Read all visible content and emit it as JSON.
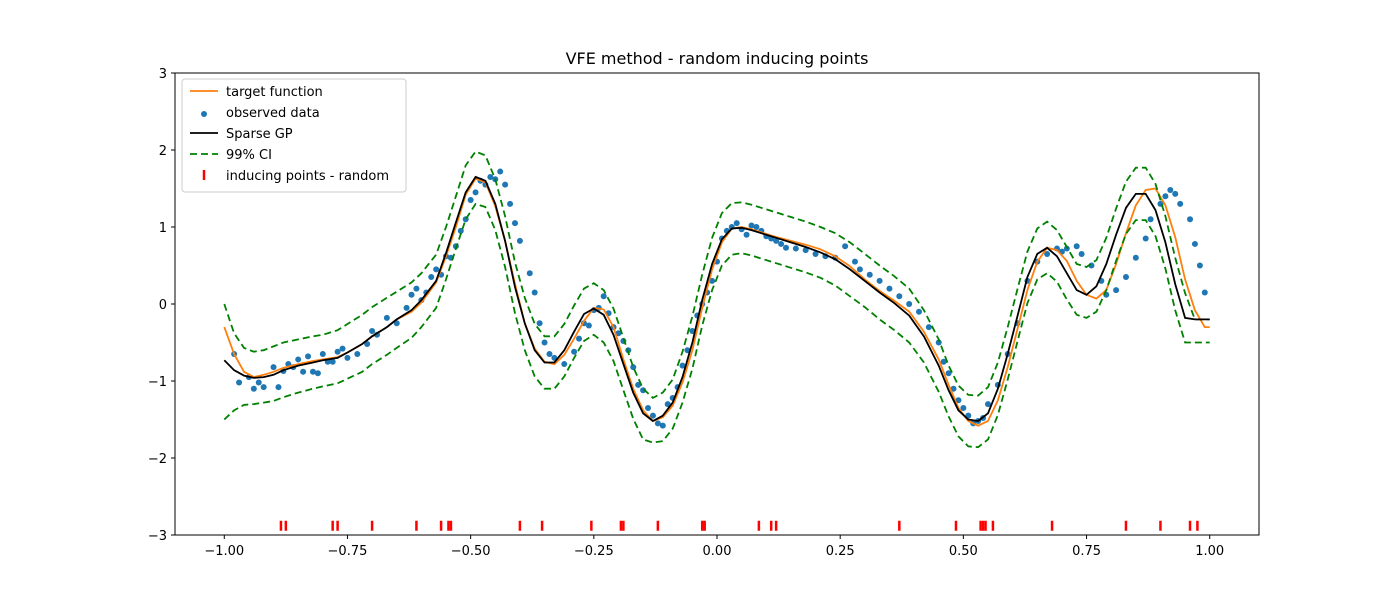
{
  "chart_data": {
    "type": "line",
    "title": "VFE method - random inducing points",
    "xlabel": "",
    "ylabel": "",
    "xlim": [
      -1.1,
      1.1
    ],
    "ylim": [
      -3,
      3
    ],
    "grid": false,
    "legend_placement": "top-left",
    "x_ticks": [
      "−1.00",
      "−0.75",
      "−0.50",
      "−0.25",
      "0.00",
      "0.25",
      "0.50",
      "0.75",
      "1.00"
    ],
    "x_tick_values": [
      -1.0,
      -0.75,
      -0.5,
      -0.25,
      0.0,
      0.25,
      0.5,
      0.75,
      1.0
    ],
    "y_ticks": [
      "−3",
      "−2",
      "−1",
      "0",
      "1",
      "2",
      "3"
    ],
    "y_tick_values": [
      -3,
      -2,
      -1,
      0,
      1,
      2,
      3
    ],
    "colors": {
      "target": "#ff7f0e",
      "observed": "#1f77b4",
      "sparse_gp": "#000000",
      "ci": "#008000",
      "inducing": "#ff0000"
    },
    "series": [
      {
        "name": "target function",
        "kind": "line",
        "x": [
          -1.0,
          -0.98,
          -0.96,
          -0.94,
          -0.92,
          -0.9,
          -0.88,
          -0.85,
          -0.82,
          -0.8,
          -0.77,
          -0.75,
          -0.72,
          -0.7,
          -0.67,
          -0.65,
          -0.62,
          -0.6,
          -0.57,
          -0.55,
          -0.53,
          -0.51,
          -0.49,
          -0.47,
          -0.45,
          -0.43,
          -0.41,
          -0.39,
          -0.37,
          -0.35,
          -0.33,
          -0.31,
          -0.29,
          -0.27,
          -0.25,
          -0.23,
          -0.21,
          -0.19,
          -0.17,
          -0.15,
          -0.13,
          -0.11,
          -0.09,
          -0.07,
          -0.05,
          -0.03,
          -0.01,
          0.01,
          0.03,
          0.05,
          0.07,
          0.09,
          0.12,
          0.15,
          0.18,
          0.21,
          0.24,
          0.27,
          0.3,
          0.33,
          0.36,
          0.39,
          0.42,
          0.45,
          0.47,
          0.49,
          0.51,
          0.53,
          0.55,
          0.57,
          0.59,
          0.61,
          0.63,
          0.65,
          0.67,
          0.69,
          0.71,
          0.73,
          0.75,
          0.77,
          0.79,
          0.81,
          0.83,
          0.85,
          0.87,
          0.89,
          0.91,
          0.93,
          0.95,
          0.97,
          0.99,
          1.0
        ],
        "y": [
          -0.3,
          -0.65,
          -0.88,
          -0.95,
          -0.92,
          -0.88,
          -0.83,
          -0.78,
          -0.74,
          -0.72,
          -0.69,
          -0.63,
          -0.52,
          -0.42,
          -0.3,
          -0.2,
          -0.1,
          0.02,
          0.28,
          0.62,
          1.0,
          1.42,
          1.63,
          1.58,
          1.27,
          0.82,
          0.26,
          -0.25,
          -0.58,
          -0.75,
          -0.78,
          -0.66,
          -0.45,
          -0.22,
          -0.05,
          -0.07,
          -0.3,
          -0.72,
          -1.1,
          -1.38,
          -1.52,
          -1.47,
          -1.32,
          -1.02,
          -0.6,
          -0.05,
          0.45,
          0.8,
          0.98,
          1.0,
          0.97,
          0.93,
          0.87,
          0.82,
          0.77,
          0.71,
          0.62,
          0.49,
          0.32,
          0.17,
          0.04,
          -0.1,
          -0.36,
          -0.72,
          -1.05,
          -1.35,
          -1.52,
          -1.58,
          -1.52,
          -1.25,
          -0.82,
          -0.32,
          0.18,
          0.55,
          0.73,
          0.7,
          0.56,
          0.3,
          0.12,
          0.07,
          0.18,
          0.52,
          0.92,
          1.28,
          1.48,
          1.5,
          1.28,
          0.87,
          0.32,
          -0.08,
          -0.3,
          -0.3
        ]
      },
      {
        "name": "Sparse GP",
        "kind": "line",
        "x": [
          -1.0,
          -0.98,
          -0.96,
          -0.94,
          -0.92,
          -0.9,
          -0.88,
          -0.85,
          -0.82,
          -0.8,
          -0.77,
          -0.75,
          -0.72,
          -0.7,
          -0.67,
          -0.65,
          -0.62,
          -0.6,
          -0.57,
          -0.55,
          -0.53,
          -0.51,
          -0.49,
          -0.47,
          -0.45,
          -0.43,
          -0.41,
          -0.39,
          -0.37,
          -0.35,
          -0.33,
          -0.31,
          -0.29,
          -0.27,
          -0.25,
          -0.23,
          -0.21,
          -0.19,
          -0.17,
          -0.15,
          -0.13,
          -0.11,
          -0.09,
          -0.07,
          -0.05,
          -0.03,
          -0.01,
          0.01,
          0.03,
          0.05,
          0.07,
          0.09,
          0.12,
          0.15,
          0.18,
          0.21,
          0.24,
          0.27,
          0.3,
          0.33,
          0.36,
          0.39,
          0.42,
          0.45,
          0.47,
          0.49,
          0.51,
          0.53,
          0.55,
          0.57,
          0.59,
          0.61,
          0.63,
          0.65,
          0.67,
          0.69,
          0.71,
          0.73,
          0.75,
          0.77,
          0.79,
          0.81,
          0.83,
          0.85,
          0.87,
          0.89,
          0.91,
          0.93,
          0.95,
          0.97,
          0.99,
          1.0
        ],
        "y": [
          -0.73,
          -0.86,
          -0.93,
          -0.96,
          -0.95,
          -0.92,
          -0.86,
          -0.8,
          -0.76,
          -0.73,
          -0.7,
          -0.63,
          -0.52,
          -0.42,
          -0.3,
          -0.2,
          -0.08,
          0.05,
          0.3,
          0.66,
          1.06,
          1.45,
          1.65,
          1.6,
          1.3,
          0.82,
          0.22,
          -0.25,
          -0.6,
          -0.76,
          -0.76,
          -0.6,
          -0.36,
          -0.13,
          -0.06,
          -0.14,
          -0.4,
          -0.78,
          -1.15,
          -1.42,
          -1.52,
          -1.45,
          -1.28,
          -0.95,
          -0.5,
          0.05,
          0.52,
          0.84,
          0.98,
          0.99,
          0.96,
          0.92,
          0.86,
          0.8,
          0.74,
          0.67,
          0.58,
          0.45,
          0.3,
          0.15,
          0.01,
          -0.15,
          -0.42,
          -0.8,
          -1.12,
          -1.38,
          -1.5,
          -1.52,
          -1.42,
          -1.1,
          -0.65,
          -0.15,
          0.35,
          0.65,
          0.73,
          0.62,
          0.4,
          0.18,
          0.12,
          0.23,
          0.52,
          0.9,
          1.25,
          1.43,
          1.43,
          1.22,
          0.8,
          0.26,
          -0.18,
          -0.2,
          -0.2,
          -0.2
        ]
      },
      {
        "name": "99% CI",
        "kind": "band",
        "x": [
          -1.0,
          -0.98,
          -0.96,
          -0.94,
          -0.92,
          -0.9,
          -0.88,
          -0.85,
          -0.82,
          -0.8,
          -0.77,
          -0.75,
          -0.72,
          -0.7,
          -0.67,
          -0.65,
          -0.62,
          -0.6,
          -0.57,
          -0.55,
          -0.53,
          -0.51,
          -0.49,
          -0.47,
          -0.45,
          -0.43,
          -0.41,
          -0.39,
          -0.37,
          -0.35,
          -0.33,
          -0.31,
          -0.29,
          -0.27,
          -0.25,
          -0.23,
          -0.21,
          -0.19,
          -0.17,
          -0.15,
          -0.13,
          -0.11,
          -0.09,
          -0.07,
          -0.05,
          -0.03,
          -0.01,
          0.01,
          0.03,
          0.05,
          0.07,
          0.09,
          0.12,
          0.15,
          0.18,
          0.21,
          0.24,
          0.27,
          0.3,
          0.33,
          0.36,
          0.39,
          0.42,
          0.45,
          0.47,
          0.49,
          0.51,
          0.53,
          0.55,
          0.57,
          0.59,
          0.61,
          0.63,
          0.65,
          0.67,
          0.69,
          0.71,
          0.73,
          0.75,
          0.77,
          0.79,
          0.81,
          0.83,
          0.85,
          0.87,
          0.89,
          0.91,
          0.93,
          0.95,
          0.97,
          0.99,
          1.0
        ],
        "upper": [
          0.0,
          -0.38,
          -0.57,
          -0.62,
          -0.6,
          -0.55,
          -0.5,
          -0.46,
          -0.42,
          -0.4,
          -0.34,
          -0.26,
          -0.14,
          -0.04,
          0.08,
          0.16,
          0.28,
          0.4,
          0.64,
          1.0,
          1.4,
          1.8,
          1.98,
          1.93,
          1.62,
          1.14,
          0.54,
          0.08,
          -0.26,
          -0.42,
          -0.42,
          -0.26,
          -0.02,
          0.2,
          0.27,
          0.18,
          -0.06,
          -0.44,
          -0.82,
          -1.1,
          -1.22,
          -1.15,
          -0.98,
          -0.62,
          -0.16,
          0.38,
          0.86,
          1.18,
          1.31,
          1.32,
          1.29,
          1.25,
          1.19,
          1.13,
          1.07,
          1.0,
          0.92,
          0.8,
          0.65,
          0.5,
          0.36,
          0.2,
          -0.08,
          -0.46,
          -0.8,
          -1.06,
          -1.18,
          -1.19,
          -1.08,
          -0.76,
          -0.3,
          0.2,
          0.68,
          0.98,
          1.07,
          0.96,
          0.74,
          0.52,
          0.48,
          0.57,
          0.86,
          1.24,
          1.59,
          1.77,
          1.77,
          1.56,
          1.14,
          0.6,
          0.14,
          -0.2,
          -0.2,
          -0.2
        ],
        "lower": [
          -1.5,
          -1.38,
          -1.31,
          -1.3,
          -1.28,
          -1.26,
          -1.21,
          -1.15,
          -1.1,
          -1.07,
          -1.03,
          -0.97,
          -0.88,
          -0.78,
          -0.66,
          -0.57,
          -0.44,
          -0.3,
          -0.05,
          0.32,
          0.72,
          1.1,
          1.3,
          1.26,
          0.96,
          0.48,
          -0.12,
          -0.6,
          -0.94,
          -1.1,
          -1.1,
          -0.94,
          -0.7,
          -0.48,
          -0.4,
          -0.5,
          -0.74,
          -1.12,
          -1.49,
          -1.76,
          -1.8,
          -1.78,
          -1.62,
          -1.28,
          -0.84,
          -0.28,
          0.18,
          0.5,
          0.64,
          0.66,
          0.63,
          0.59,
          0.53,
          0.47,
          0.41,
          0.34,
          0.24,
          0.1,
          -0.04,
          -0.2,
          -0.34,
          -0.5,
          -0.76,
          -1.14,
          -1.46,
          -1.72,
          -1.85,
          -1.86,
          -1.76,
          -1.44,
          -0.98,
          -0.48,
          0.01,
          0.32,
          0.4,
          0.29,
          0.06,
          -0.14,
          -0.18,
          -0.1,
          0.18,
          0.56,
          0.91,
          1.09,
          1.09,
          0.88,
          0.46,
          -0.08,
          -0.5,
          -0.5,
          -0.5,
          -0.5
        ]
      },
      {
        "name": "observed data",
        "kind": "scatter",
        "x": [
          -0.98,
          -0.97,
          -0.95,
          -0.94,
          -0.93,
          -0.92,
          -0.9,
          -0.89,
          -0.88,
          -0.87,
          -0.86,
          -0.85,
          -0.84,
          -0.83,
          -0.82,
          -0.81,
          -0.8,
          -0.79,
          -0.78,
          -0.77,
          -0.76,
          -0.75,
          -0.73,
          -0.71,
          -0.7,
          -0.69,
          -0.67,
          -0.65,
          -0.63,
          -0.62,
          -0.61,
          -0.6,
          -0.59,
          -0.58,
          -0.57,
          -0.56,
          -0.55,
          -0.54,
          -0.53,
          -0.52,
          -0.51,
          -0.5,
          -0.49,
          -0.48,
          -0.47,
          -0.46,
          -0.45,
          -0.44,
          -0.43,
          -0.42,
          -0.41,
          -0.4,
          -0.38,
          -0.37,
          -0.36,
          -0.35,
          -0.34,
          -0.33,
          -0.31,
          -0.29,
          -0.28,
          -0.27,
          -0.26,
          -0.25,
          -0.24,
          -0.23,
          -0.22,
          -0.21,
          -0.2,
          -0.19,
          -0.18,
          -0.17,
          -0.16,
          -0.15,
          -0.14,
          -0.13,
          -0.12,
          -0.11,
          -0.1,
          -0.09,
          -0.08,
          -0.07,
          -0.06,
          -0.05,
          -0.04,
          -0.03,
          -0.02,
          -0.01,
          0.0,
          0.01,
          0.02,
          0.03,
          0.04,
          0.05,
          0.06,
          0.07,
          0.08,
          0.09,
          0.1,
          0.11,
          0.12,
          0.13,
          0.14,
          0.16,
          0.18,
          0.2,
          0.22,
          0.24,
          0.26,
          0.28,
          0.29,
          0.31,
          0.33,
          0.35,
          0.37,
          0.39,
          0.41,
          0.43,
          0.45,
          0.46,
          0.47,
          0.48,
          0.49,
          0.5,
          0.51,
          0.52,
          0.53,
          0.54,
          0.55,
          0.57,
          0.59,
          0.61,
          0.63,
          0.65,
          0.67,
          0.69,
          0.7,
          0.71,
          0.73,
          0.74,
          0.76,
          0.78,
          0.79,
          0.81,
          0.83,
          0.85,
          0.87,
          0.88,
          0.9,
          0.91,
          0.92,
          0.93,
          0.94,
          0.96,
          0.97,
          0.98,
          0.99
        ],
        "y": [
          -0.65,
          -1.02,
          -0.95,
          -1.1,
          -1.02,
          -1.08,
          -0.82,
          -1.08,
          -0.87,
          -0.78,
          -0.82,
          -0.72,
          -0.88,
          -0.68,
          -0.88,
          -0.9,
          -0.65,
          -0.75,
          -0.75,
          -0.62,
          -0.58,
          -0.7,
          -0.65,
          -0.52,
          -0.35,
          -0.4,
          -0.18,
          -0.25,
          -0.05,
          0.12,
          0.2,
          0.05,
          0.15,
          0.35,
          0.45,
          0.38,
          0.62,
          0.6,
          0.75,
          0.95,
          1.1,
          1.35,
          1.45,
          1.6,
          1.55,
          1.65,
          1.62,
          1.72,
          1.55,
          1.3,
          1.05,
          0.82,
          0.4,
          0.15,
          -0.25,
          -0.5,
          -0.65,
          -0.7,
          -0.78,
          -0.62,
          -0.45,
          -0.25,
          -0.28,
          -0.08,
          -0.05,
          0.1,
          -0.12,
          -0.3,
          -0.38,
          -0.48,
          -0.6,
          -0.82,
          -1.05,
          -1.12,
          -1.35,
          -1.45,
          -1.55,
          -1.58,
          -1.3,
          -1.22,
          -1.08,
          -0.8,
          -0.6,
          -0.35,
          -0.15,
          0.0,
          0.15,
          0.3,
          0.55,
          0.85,
          0.95,
          1.0,
          1.05,
          0.97,
          0.9,
          1.02,
          1.0,
          0.95,
          0.88,
          0.85,
          0.82,
          0.78,
          0.73,
          0.72,
          0.7,
          0.65,
          0.62,
          0.6,
          0.75,
          0.55,
          0.45,
          0.38,
          0.3,
          0.2,
          0.1,
          0.0,
          -0.1,
          -0.3,
          -0.5,
          -0.75,
          -0.9,
          -1.1,
          -1.25,
          -1.35,
          -1.45,
          -1.55,
          -1.52,
          -1.48,
          -1.3,
          -1.05,
          -0.65,
          -0.25,
          0.3,
          0.55,
          0.65,
          0.72,
          0.68,
          0.72,
          0.75,
          0.65,
          0.5,
          0.3,
          0.12,
          0.18,
          0.35,
          0.6,
          0.85,
          1.1,
          1.3,
          1.4,
          1.48,
          1.43,
          1.3,
          1.1,
          0.78,
          0.5,
          0.15
        ]
      },
      {
        "name": "inducing points - random",
        "kind": "rug",
        "y_level": -2.88,
        "x": [
          -0.885,
          -0.875,
          -0.78,
          -0.77,
          -0.7,
          -0.61,
          -0.56,
          -0.545,
          -0.54,
          -0.4,
          -0.355,
          -0.255,
          -0.195,
          -0.19,
          -0.12,
          -0.03,
          -0.025,
          0.085,
          0.11,
          0.12,
          0.37,
          0.485,
          0.535,
          0.54,
          0.545,
          0.56,
          0.68,
          0.83,
          0.9,
          0.96,
          0.975
        ]
      }
    ]
  }
}
